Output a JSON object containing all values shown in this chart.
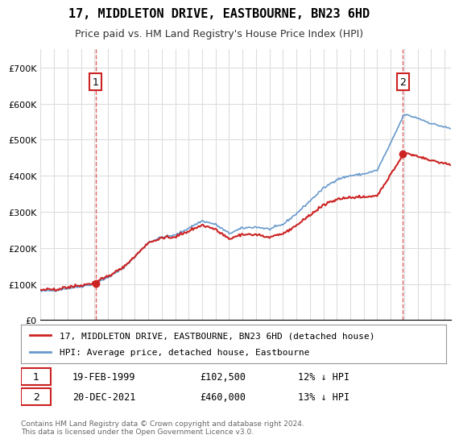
{
  "title": "17, MIDDLETON DRIVE, EASTBOURNE, BN23 6HD",
  "subtitle": "Price paid vs. HM Land Registry's House Price Index (HPI)",
  "hpi_label": "HPI: Average price, detached house, Eastbourne",
  "property_label": "17, MIDDLETON DRIVE, EASTBOURNE, BN23 6HD (detached house)",
  "hpi_color": "#6699cc",
  "property_color": "#cc2222",
  "marker1_date": "19-FEB-1999",
  "marker1_price": 102500,
  "marker1_pct": "12% ↓ HPI",
  "marker2_date": "20-DEC-2021",
  "marker2_price": 460000,
  "marker2_pct": "13% ↓ HPI",
  "footnote": "Contains HM Land Registry data © Crown copyright and database right 2024.\nThis data is licensed under the Open Government Licence v3.0.",
  "ylim_max": 750000,
  "start_year": 1995,
  "end_year": 2025,
  "background_color": "#ffffff",
  "grid_color": "#dddddd"
}
